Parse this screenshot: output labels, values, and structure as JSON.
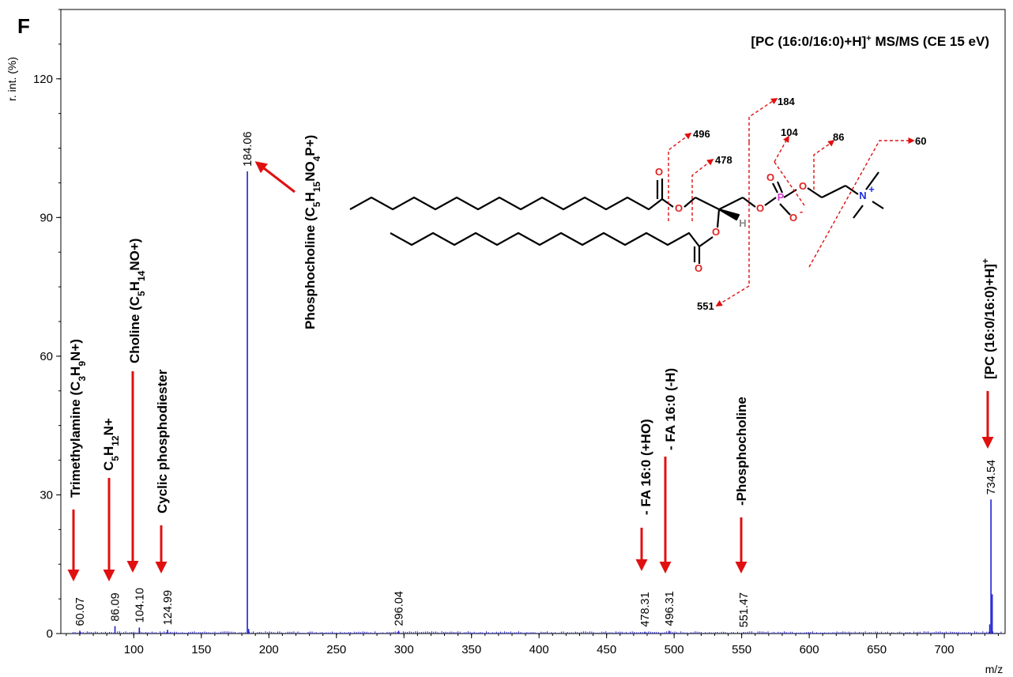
{
  "panel_letter": "F",
  "chart_data": {
    "type": "bar",
    "title": "[PC (16:0/16:0)+H]⁺ MS/MS (CE 15 eV)",
    "xlabel": "m/z",
    "ylabel": "r. int. (%)",
    "xlim": [
      46,
      745
    ],
    "ylim": [
      0,
      135
    ],
    "x_ticks": [
      100,
      150,
      200,
      250,
      300,
      350,
      400,
      450,
      500,
      550,
      600,
      650,
      700
    ],
    "y_ticks": [
      0,
      30,
      60,
      90,
      120
    ],
    "grid": false,
    "peaks": [
      {
        "mz": 60.07,
        "intensity": 0.6,
        "label": "60.07"
      },
      {
        "mz": 86.09,
        "intensity": 1.6,
        "label": "86.09"
      },
      {
        "mz": 104.1,
        "intensity": 1.3,
        "label": "104.10"
      },
      {
        "mz": 124.99,
        "intensity": 0.8,
        "label": "124.99"
      },
      {
        "mz": 184.06,
        "intensity": 100.0,
        "label": "184.06"
      },
      {
        "mz": 296.04,
        "intensity": 0.6,
        "label": "296.04"
      },
      {
        "mz": 478.31,
        "intensity": 0.4,
        "label": "478.31"
      },
      {
        "mz": 496.31,
        "intensity": 0.6,
        "label": "496.31"
      },
      {
        "mz": 551.47,
        "intensity": 0.3,
        "label": "551.47"
      },
      {
        "mz": 734.54,
        "intensity": 29.0,
        "label": "734.54"
      }
    ],
    "annotations": [
      {
        "mz": 60.07,
        "parts": [
          [
            "Trimethylamine (C",
            ""
          ],
          [
            "3",
            "sub"
          ],
          [
            "H",
            ""
          ],
          [
            "9",
            "sub"
          ],
          [
            "N+)",
            ""
          ]
        ]
      },
      {
        "mz": 86.09,
        "parts": [
          [
            "C",
            ""
          ],
          [
            "5",
            "sub"
          ],
          [
            "H",
            ""
          ],
          [
            "12",
            "sub"
          ],
          [
            "N+",
            ""
          ]
        ]
      },
      {
        "mz": 104.1,
        "parts": [
          [
            "Choline (C",
            ""
          ],
          [
            "5",
            "sub"
          ],
          [
            "H",
            ""
          ],
          [
            "14",
            "sub"
          ],
          [
            "NO+)",
            ""
          ]
        ]
      },
      {
        "mz": 124.99,
        "parts": [
          [
            "Cyclic phosphodiester",
            ""
          ]
        ]
      },
      {
        "mz": 184.06,
        "parts": [
          [
            "Phosphocholine (C",
            ""
          ],
          [
            "5",
            "sub"
          ],
          [
            "H",
            ""
          ],
          [
            "15",
            "sub"
          ],
          [
            "NO",
            ""
          ],
          [
            "4",
            "sub"
          ],
          [
            "P+)",
            ""
          ]
        ]
      },
      {
        "mz": 478.31,
        "parts": [
          [
            "- FA 16:0 (+HO)",
            ""
          ]
        ]
      },
      {
        "mz": 496.31,
        "parts": [
          [
            "- FA 16:0 (-H)",
            ""
          ]
        ]
      },
      {
        "mz": 551.47,
        "parts": [
          [
            "-Phosphocholine",
            ""
          ]
        ]
      },
      {
        "mz": 734.54,
        "parts": [
          [
            "[PC (16:0/16:0)+H]",
            ""
          ],
          [
            "+",
            "sup"
          ]
        ]
      }
    ],
    "colors": {
      "spectrum": "#1f1fd0",
      "arrow": "#e01010",
      "oxygen": "#e02020",
      "phosphorus": "#d040d0",
      "nitrogen": "#2030e0"
    }
  },
  "structure": {
    "fragments": [
      "496",
      "478",
      "184",
      "104",
      "86",
      "60",
      "551"
    ],
    "atoms": {
      "O": "O",
      "P": "P",
      "N": "N",
      "H": "H",
      "plus": "+",
      "minus": "-"
    }
  }
}
